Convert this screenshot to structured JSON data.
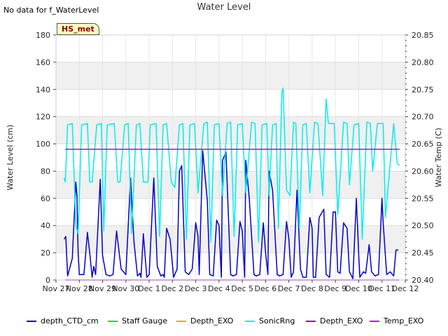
{
  "no_data_note": "No data for f_WaterLevel",
  "station_tag": "HS_met",
  "chart_data": {
    "type": "line",
    "title": "Water Level",
    "ylabel": "Water Level (cm)",
    "y2label": "Water Temp (C)",
    "xlabel": "",
    "ylim": [
      0,
      180
    ],
    "y2lim": [
      20.4,
      20.85
    ],
    "yticks": [
      0,
      20,
      40,
      60,
      80,
      100,
      120,
      140,
      160,
      180
    ],
    "y2ticks": [
      "20.40",
      "20.45",
      "20.50",
      "20.55",
      "20.60",
      "20.65",
      "20.70",
      "20.75",
      "20.80",
      "20.85"
    ],
    "x_axis": "days",
    "xlim": [
      0,
      15
    ],
    "x_tick_labels": [
      "Nov 27",
      "Nov 28",
      "Nov 29",
      "Nov 30",
      "Dec 1",
      "Dec 2",
      "Dec 3",
      "Dec 4",
      "Dec 5",
      "Dec 6",
      "Dec 7",
      "Dec 8",
      "Dec 9",
      "Dec 10",
      "Dec 11",
      "Dec 12"
    ],
    "grid": true,
    "background_bands": "alternating grey",
    "colors": {
      "depth_CTD_cm": "#0000cc",
      "Staff Gauge": "#22dd22",
      "Depth_EXO_orange": "#ffa500",
      "SonicRng": "#00eeee",
      "Depth_EXO_purple": "#9900cc",
      "Temp_EXO": "#cc00cc"
    },
    "legend_placement": "bottom",
    "legend": [
      "depth_CTD_cm",
      "Staff Gauge",
      "Depth_EXO",
      "SonicRng",
      "Depth_EXO",
      "Temp_EXO"
    ],
    "series": [
      {
        "name": "depth_CTD_cm",
        "color": "#0000cc",
        "x": [
          0.35,
          0.42,
          0.5,
          0.7,
          0.85,
          0.9,
          0.95,
          1.0,
          1.2,
          1.35,
          1.45,
          1.55,
          1.62,
          1.7,
          1.9,
          2.0,
          2.15,
          2.3,
          2.45,
          2.6,
          2.8,
          3.0,
          3.2,
          3.35,
          3.5,
          3.6,
          3.65,
          3.75,
          3.9,
          4.0,
          4.2,
          4.35,
          4.5,
          4.6,
          4.65,
          4.75,
          4.9,
          5.05,
          5.2,
          5.3,
          5.4,
          5.55,
          5.7,
          5.85,
          6.0,
          6.1,
          6.15,
          6.3,
          6.5,
          6.6,
          6.75,
          6.9,
          7.0,
          7.1,
          7.15,
          7.3,
          7.5,
          7.6,
          7.75,
          7.9,
          8.0,
          8.1,
          8.15,
          8.3,
          8.5,
          8.6,
          8.75,
          8.9,
          9.0,
          9.1,
          9.15,
          9.3,
          9.5,
          9.6,
          9.75,
          9.9,
          10.0,
          10.1,
          10.2,
          10.35,
          10.5,
          10.6,
          10.75,
          10.9,
          11.0,
          11.05,
          11.15,
          11.3,
          11.5,
          11.6,
          11.75,
          11.9,
          12.0,
          12.1,
          12.2,
          12.35,
          12.5,
          12.6,
          12.75,
          12.9,
          13.0,
          13.05,
          13.2,
          13.3,
          13.45,
          13.55,
          13.7,
          13.85,
          14.0,
          14.05,
          14.2,
          14.35,
          14.5,
          14.6,
          14.7
        ],
        "y": [
          30,
          32,
          3,
          16,
          72,
          62,
          20,
          4,
          4,
          35,
          20,
          2,
          10,
          4,
          74,
          18,
          4,
          3,
          4,
          36,
          8,
          4,
          75,
          28,
          3,
          5,
          2,
          34,
          2,
          4,
          75,
          10,
          3,
          4,
          2,
          38,
          30,
          2,
          8,
          80,
          84,
          6,
          4,
          8,
          42,
          32,
          4,
          95,
          58,
          4,
          3,
          44,
          40,
          2,
          88,
          94,
          4,
          3,
          4,
          43,
          36,
          2,
          88,
          60,
          4,
          3,
          4,
          42,
          20,
          4,
          80,
          66,
          4,
          3,
          4,
          43,
          30,
          2,
          6,
          66,
          8,
          2,
          2,
          46,
          38,
          2,
          2,
          46,
          52,
          4,
          2,
          50,
          50,
          6,
          5,
          42,
          38,
          6,
          1,
          60,
          18,
          2,
          6,
          5,
          26,
          6,
          3,
          4,
          60,
          42,
          4,
          6,
          3,
          22,
          22
        ]
      },
      {
        "name": "SonicRng",
        "color": "#00eeee",
        "x": [
          0.35,
          0.4,
          0.5,
          0.7,
          0.85,
          0.95,
          1.1,
          1.35,
          1.45,
          1.55,
          1.75,
          1.95,
          2.05,
          2.2,
          2.5,
          2.65,
          2.75,
          2.95,
          3.1,
          3.25,
          3.45,
          3.6,
          3.75,
          3.95,
          4.05,
          4.3,
          4.45,
          4.6,
          4.75,
          4.95,
          5.1,
          5.3,
          5.45,
          5.6,
          5.75,
          5.95,
          6.1,
          6.35,
          6.5,
          6.65,
          6.8,
          7.0,
          7.15,
          7.35,
          7.5,
          7.65,
          7.8,
          8.0,
          8.15,
          8.4,
          8.55,
          8.7,
          8.85,
          9.05,
          9.15,
          9.3,
          9.45,
          9.55,
          9.7,
          9.75,
          9.9,
          10.05,
          10.2,
          10.3,
          10.45,
          10.6,
          10.75,
          10.9,
          11.1,
          11.25,
          11.45,
          11.6,
          11.7,
          11.95,
          12.1,
          12.35,
          12.5,
          12.6,
          12.8,
          13.0,
          13.15,
          13.35,
          13.5,
          13.6,
          13.8,
          14.05,
          14.15,
          14.5,
          14.65,
          14.75
        ],
        "y": [
          75,
          72,
          114,
          115,
          40,
          34,
          114,
          115,
          72,
          72,
          114,
          115,
          36,
          114,
          115,
          72,
          72,
          114,
          115,
          34,
          114,
          115,
          72,
          72,
          114,
          115,
          32,
          114,
          115,
          72,
          68,
          114,
          115,
          30,
          114,
          115,
          64,
          115,
          116,
          28,
          114,
          115,
          62,
          115,
          116,
          32,
          114,
          115,
          64,
          116,
          115,
          28,
          114,
          115,
          62,
          114,
          115,
          38,
          138,
          141,
          66,
          62,
          116,
          115,
          38,
          114,
          115,
          64,
          116,
          115,
          62,
          133,
          115,
          115,
          48,
          116,
          115,
          70,
          114,
          115,
          30,
          116,
          115,
          80,
          115,
          115,
          46,
          115,
          86,
          84
        ]
      },
      {
        "name": "Temp_EXO",
        "color": "#cc00cc",
        "x": [
          0.4,
          14.75
        ],
        "y": [
          96,
          96
        ]
      },
      {
        "name": "Depth_EXO",
        "color": "#9900cc",
        "x": [
          0.4,
          14.75
        ],
        "y": [
          0,
          0
        ]
      }
    ]
  }
}
